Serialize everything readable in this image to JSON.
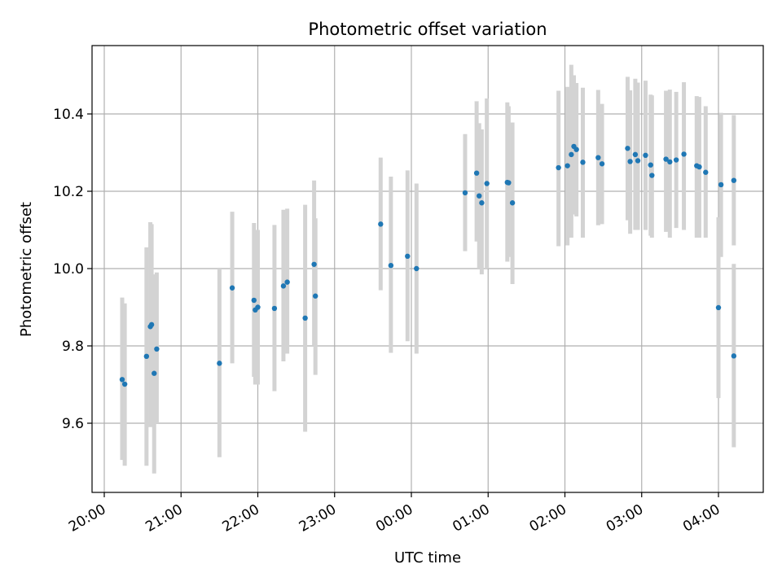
{
  "chart_data": {
    "type": "scatter",
    "title": "Photometric offset variation",
    "xlabel": "UTC time",
    "ylabel": "Photometric offset",
    "grid": true,
    "legend": "none",
    "x_ticks": [
      "20:00",
      "21:00",
      "22:00",
      "23:00",
      "00:00",
      "01:00",
      "02:00",
      "03:00",
      "04:00"
    ],
    "y_ticks": [
      "9.6",
      "9.8",
      "10.0",
      "10.2",
      "10.4"
    ],
    "colors": {
      "points": "#1f77b4",
      "errorbars": "#d3d3d3",
      "grid": "#b0b0b0"
    },
    "series": [
      {
        "x": [
          "20:14",
          "20:16",
          "20:33",
          "20:36",
          "20:37",
          "20:39",
          "20:41",
          "21:30",
          "21:40",
          "21:57",
          "21:58",
          "22:00",
          "22:13",
          "22:20",
          "22:23",
          "22:37",
          "22:44",
          "22:45",
          "23:36",
          "23:44",
          "23:57",
          "24:04",
          "24:42",
          "24:51",
          "24:53",
          "24:55",
          "24:59",
          "25:15",
          "25:16",
          "25:19",
          "25:55",
          "26:02",
          "26:05",
          "26:07",
          "26:09",
          "26:14",
          "26:26",
          "26:29",
          "26:49",
          "26:51",
          "26:55",
          "26:57",
          "27:03",
          "27:07",
          "27:08",
          "27:19",
          "27:22",
          "27:27",
          "27:33",
          "27:43",
          "27:45",
          "27:50",
          "28:02",
          "28:12"
        ],
        "y": [
          9.713,
          9.701,
          9.773,
          9.85,
          9.855,
          9.729,
          9.792,
          9.755,
          9.95,
          9.918,
          9.893,
          9.9,
          9.897,
          9.955,
          9.965,
          9.872,
          10.011,
          9.929,
          10.115,
          10.008,
          10.032,
          10.0,
          10.196,
          10.247,
          10.188,
          10.17,
          10.22,
          10.223,
          10.222,
          10.17,
          10.261,
          10.266,
          10.295,
          10.316,
          10.308,
          10.275,
          10.287,
          10.271,
          10.311,
          10.277,
          10.295,
          10.279,
          10.293,
          10.268,
          10.241,
          10.283,
          10.276,
          10.281,
          10.296,
          10.266,
          10.263,
          10.249,
          10.217,
          10.228
        ],
        "err_low": [
          9.505,
          9.49,
          9.49,
          9.59,
          9.6,
          9.47,
          9.6,
          9.512,
          9.755,
          9.72,
          9.7,
          9.7,
          9.683,
          9.76,
          9.78,
          9.578,
          9.802,
          9.725,
          9.944,
          9.782,
          9.812,
          9.78,
          10.045,
          10.07,
          10.0,
          9.985,
          10.0,
          10.018,
          10.03,
          9.96,
          10.058,
          10.06,
          10.08,
          10.14,
          10.135,
          10.08,
          10.112,
          10.115,
          10.125,
          10.09,
          10.1,
          10.1,
          10.1,
          10.085,
          10.08,
          10.095,
          10.08,
          10.105,
          10.1,
          10.08,
          10.08,
          10.08,
          10.03,
          10.06
        ],
        "err_high": [
          9.925,
          9.91,
          10.055,
          10.12,
          10.115,
          9.985,
          9.99,
          10.0,
          10.147,
          10.118,
          10.098,
          10.1,
          10.113,
          10.152,
          10.155,
          10.165,
          10.228,
          10.13,
          10.287,
          10.238,
          10.254,
          10.22,
          10.348,
          10.433,
          10.376,
          10.36,
          10.44,
          10.43,
          10.42,
          10.378,
          10.46,
          10.47,
          10.527,
          10.5,
          10.48,
          10.468,
          10.462,
          10.426,
          10.496,
          10.461,
          10.491,
          10.481,
          10.486,
          10.45,
          10.448,
          10.46,
          10.463,
          10.457,
          10.482,
          10.446,
          10.444,
          10.42,
          10.403,
          10.397
        ]
      },
      {
        "x": [
          "28:00",
          "28:12"
        ],
        "y": [
          9.899,
          9.774
        ],
        "err_low": [
          9.665,
          9.538
        ],
        "err_high": [
          10.133,
          10.012
        ]
      }
    ]
  }
}
